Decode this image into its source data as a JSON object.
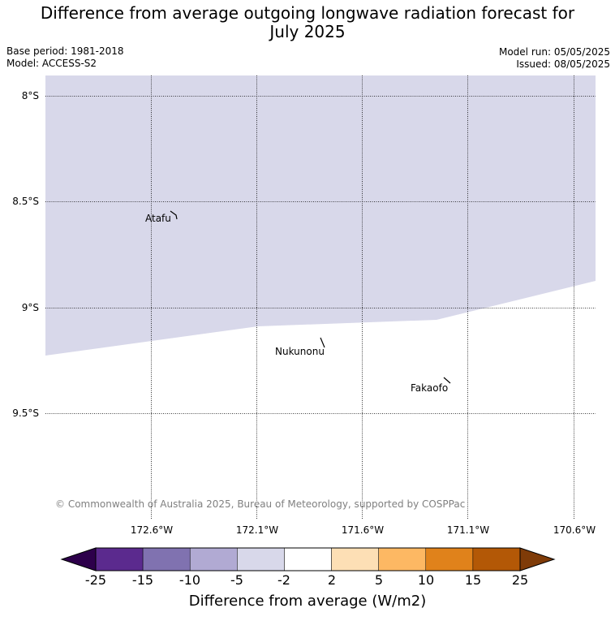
{
  "title_line1": "Difference from average outgoing longwave radiation forecast for",
  "title_line2": "July 2025",
  "base_period": "Base period: 1981-2018",
  "model": "Model: ACCESS-S2",
  "model_run": "Model run: 05/05/2025",
  "issued": "Issued: 08/05/2025",
  "map": {
    "lat_labels": [
      "8°S",
      "8.5°S",
      "9°S",
      "9.5°S"
    ],
    "lon_labels": [
      "172.6°W",
      "172.1°W",
      "171.6°W",
      "171.1°W",
      "170.6°W"
    ],
    "places": [
      "Atafu",
      "Nukunonu",
      "Fakaofo"
    ],
    "region_fill_color": "#d8d8ea",
    "region_category": "-5 to -2",
    "copyright": "© Commonwealth of Australia 2025, Bureau of Meteorology, supported by COSPPac"
  },
  "colorbar": {
    "ticks": [
      "-25",
      "-15",
      "-10",
      "-5",
      "-2",
      "2",
      "5",
      "10",
      "15",
      "25"
    ],
    "colors": [
      "#5b2a8e",
      "#8072b0",
      "#b1aad3",
      "#d8d8ea",
      "#ffffff",
      "#fddfb5",
      "#fdb863",
      "#e0821b",
      "#b35806"
    ],
    "under_color": "#2d004b",
    "over_color": "#7f3b08",
    "label": "Difference from average (W/m2)"
  }
}
